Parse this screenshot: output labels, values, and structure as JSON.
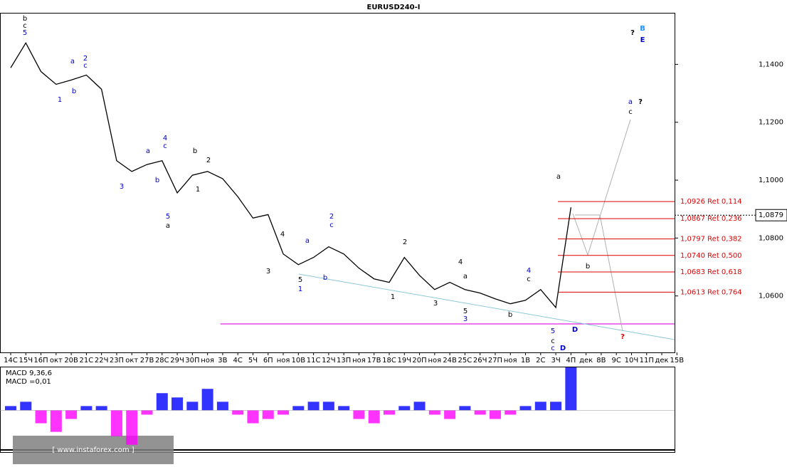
{
  "chart_data": {
    "type": "line",
    "title": "EURUSD240-I",
    "categories": [
      "14С",
      "15Ч",
      "16П",
      "окт",
      "20В",
      "21С",
      "22Ч",
      "23П",
      "окт",
      "27В",
      "28С",
      "29Ч",
      "30П",
      "ноя",
      "3В",
      "4С",
      "5Ч",
      "6П",
      "ноя",
      "10В",
      "11С",
      "12Ч",
      "13П",
      "ноя",
      "17В",
      "18С",
      "19Ч",
      "20П",
      "ноя",
      "24В",
      "25С",
      "26Ч",
      "27П",
      "ноя",
      "1В",
      "2С",
      "3Ч",
      "4П",
      "дек",
      "8В",
      "9С",
      "10Ч",
      "11П",
      "дек",
      "15В"
    ],
    "values": [
      1.1388,
      1.1474,
      1.1375,
      1.1331,
      1.1346,
      1.1363,
      1.1314,
      1.1067,
      1.103,
      1.1054,
      1.1067,
      1.0956,
      1.1017,
      1.103,
      1.1005,
      1.0943,
      1.0869,
      1.0881,
      1.0745,
      1.0708,
      1.0733,
      1.077,
      1.0745,
      1.0696,
      1.0659,
      1.0647,
      1.0733,
      1.0671,
      1.0622,
      1.0647,
      1.0622,
      1.061,
      1.059,
      1.0573,
      1.0585,
      1.0622,
      1.056,
      1.0906,
      null,
      null,
      null,
      null,
      null,
      null,
      null
    ],
    "color": "#000000",
    "ylim": [
      1.0405,
      1.1578
    ],
    "yticks": [
      {
        "value": 1.06,
        "label": "1,0600"
      },
      {
        "value": 1.08,
        "label": "1,0800"
      },
      {
        "value": 1.1,
        "label": "1,1000"
      },
      {
        "value": 1.12,
        "label": "1,1200"
      },
      {
        "value": 1.14,
        "label": "1,1400"
      }
    ],
    "last_price": {
      "value": 1.0879,
      "label": "1,0879"
    },
    "fib_color": "#dd0000",
    "fib_levels": [
      {
        "value": 1.0926,
        "label": "1,0926 Ret 0,114"
      },
      {
        "value": 1.0867,
        "label": "1,0867 Ret 0,236"
      },
      {
        "value": 1.0797,
        "label": "1,0797 Ret 0,382"
      },
      {
        "value": 1.074,
        "label": "1,0740 Ret 0,500"
      },
      {
        "value": 1.0683,
        "label": "1,0683 Ret 0,618"
      },
      {
        "value": 1.0613,
        "label": "1,0613 Ret 0,764"
      }
    ],
    "annotations": [
      {
        "text": "b",
        "color": "#000000"
      },
      {
        "text": "c",
        "color": "#000000"
      },
      {
        "text": "5",
        "color": "#0000cc"
      },
      {
        "text": "a",
        "color": "#0000cc"
      },
      {
        "text": "2",
        "color": "#0000cc"
      },
      {
        "text": "c",
        "color": "#0000cc"
      },
      {
        "text": "b",
        "color": "#0000cc"
      },
      {
        "text": "1",
        "color": "#0000cc"
      },
      {
        "text": "4",
        "color": "#0000cc"
      },
      {
        "text": "c",
        "color": "#0000cc"
      },
      {
        "text": "a",
        "color": "#0000cc"
      },
      {
        "text": "b",
        "color": "#0000cc"
      },
      {
        "text": "3",
        "color": "#0000cc"
      },
      {
        "text": "5",
        "color": "#0000cc"
      },
      {
        "text": "a",
        "color": "#000000"
      },
      {
        "text": "b",
        "color": "#000000"
      },
      {
        "text": "2",
        "color": "#000000"
      },
      {
        "text": "1",
        "color": "#000000"
      },
      {
        "text": "4",
        "color": "#000000"
      },
      {
        "text": "a",
        "color": "#0000cc"
      },
      {
        "text": "3",
        "color": "#000000"
      },
      {
        "text": "5",
        "color": "#000000"
      },
      {
        "text": "1",
        "color": "#0000cc"
      },
      {
        "text": "b",
        "color": "#0000cc"
      },
      {
        "text": "2",
        "color": "#0000cc"
      },
      {
        "text": "c",
        "color": "#0000cc"
      },
      {
        "text": "2",
        "color": "#000000"
      },
      {
        "text": "1",
        "color": "#000000"
      },
      {
        "text": "3",
        "color": "#000000"
      },
      {
        "text": "4",
        "color": "#000000"
      },
      {
        "text": "a",
        "color": "#000000"
      },
      {
        "text": "5",
        "color": "#000000"
      },
      {
        "text": "3",
        "color": "#0000cc"
      },
      {
        "text": "4",
        "color": "#0000cc"
      },
      {
        "text": "c",
        "color": "#000000"
      },
      {
        "text": "b",
        "color": "#000000"
      },
      {
        "text": "5",
        "color": "#0000cc"
      },
      {
        "text": "c",
        "color": "#000000"
      },
      {
        "text": "c",
        "color": "#0000cc"
      },
      {
        "text": "D",
        "color": "#0000cc"
      },
      {
        "text": "D",
        "color": "#0000cc"
      },
      {
        "text": "a",
        "color": "#000000"
      },
      {
        "text": "b",
        "color": "#000000"
      },
      {
        "text": "a",
        "color": "#0000cc"
      },
      {
        "text": "?",
        "color": "#000000"
      },
      {
        "text": "c",
        "color": "#000000"
      },
      {
        "text": "?",
        "color": "#000000"
      },
      {
        "text": "B",
        "color": "#1e90ff"
      },
      {
        "text": "E",
        "color": "#0000cc"
      },
      {
        "text": "?",
        "color": "#e00000"
      }
    ],
    "macd": {
      "title": "MACD 9,36,6",
      "value_label": "MACD =0,01",
      "ylim": [
        -0.0092,
        0.01
      ],
      "positive_color": "#0000ff",
      "negative_color": "#ff00ff",
      "values": [
        0.001,
        0.002,
        -0.003,
        -0.005,
        -0.002,
        0.001,
        0.001,
        -0.006,
        -0.008,
        -0.001,
        0.004,
        0.003,
        0.002,
        0.005,
        0.002,
        -0.001,
        -0.003,
        -0.002,
        -0.001,
        0.001,
        0.002,
        0.002,
        0.001,
        -0.002,
        -0.003,
        -0.001,
        0.001,
        0.002,
        -0.001,
        -0.002,
        0.001,
        -0.001,
        -0.002,
        -0.001,
        0.001,
        0.002,
        0.002,
        0.01,
        null,
        null,
        null,
        null,
        null,
        null,
        null
      ]
    },
    "watermark": "[ www.instaforex.com ]"
  }
}
